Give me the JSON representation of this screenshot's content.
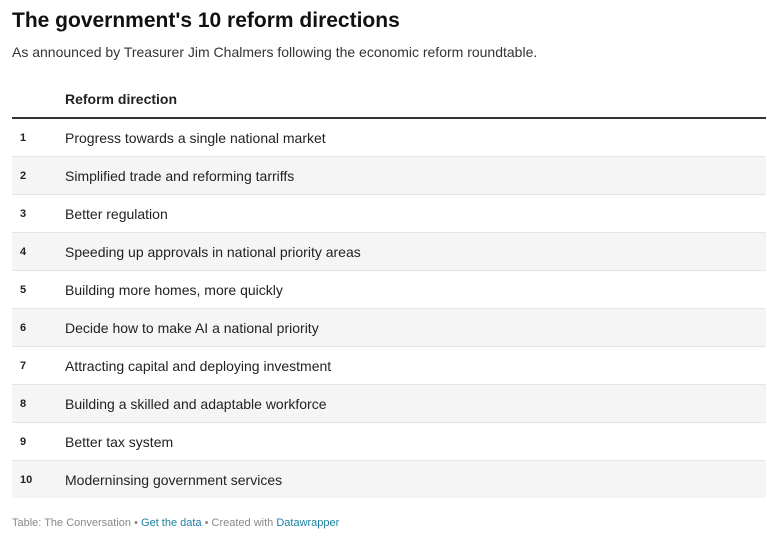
{
  "title": "The government's 10 reform directions",
  "subtitle": "As announced by Treasurer Jim Chalmers following the economic reform roundtable.",
  "table": {
    "headers": [
      "",
      "Reform direction"
    ],
    "rows": [
      {
        "num": "1",
        "direction": "Progress towards a single national market"
      },
      {
        "num": "2",
        "direction": "Simplified trade and reforming tarriffs"
      },
      {
        "num": "3",
        "direction": "Better regulation"
      },
      {
        "num": "4",
        "direction": "Speeding up approvals in national priority areas"
      },
      {
        "num": "5",
        "direction": "Building more homes, more quickly"
      },
      {
        "num": "6",
        "direction": "Decide how to make AI a national priority"
      },
      {
        "num": "7",
        "direction": "Attracting capital and deploying investment"
      },
      {
        "num": "8",
        "direction": "Building a skilled and adaptable workforce"
      },
      {
        "num": "9",
        "direction": "Better tax system"
      },
      {
        "num": "10",
        "direction": "Moderninsing government services"
      }
    ]
  },
  "footer": {
    "source": "Table: The Conversation",
    "sep1": " • ",
    "data_link": "Get the data",
    "sep2": " • Created with ",
    "tool_link": "Datawrapper"
  },
  "colors": {
    "stripe": "#f5f5f5",
    "link": "#1d81a2",
    "header_rule": "#333333"
  }
}
